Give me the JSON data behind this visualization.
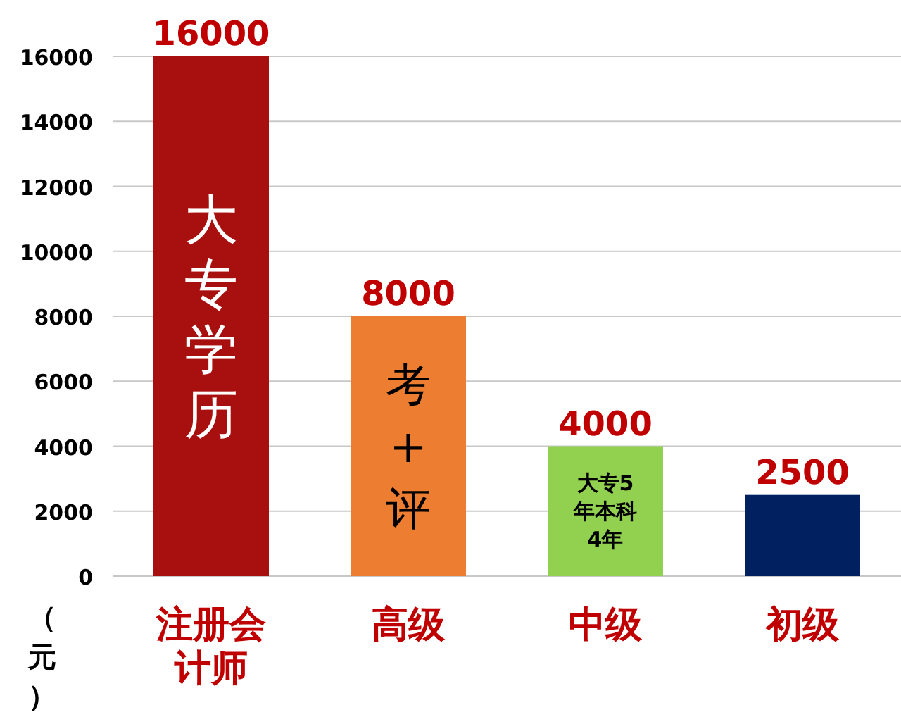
{
  "chart_data": {
    "type": "bar",
    "categories": [
      "注册会计师",
      "高级",
      "中级",
      "初级"
    ],
    "values": [
      16000,
      8000,
      4000,
      2500
    ],
    "colors": [
      "#a8100f",
      "#ed7d31",
      "#92d050",
      "#002060"
    ],
    "ylabel": "（元）",
    "ylim": [
      0,
      16000
    ],
    "yticks": [
      0,
      2000,
      4000,
      6000,
      8000,
      10000,
      12000,
      14000,
      16000
    ],
    "grid": "y",
    "data_labels": true,
    "annotations": [
      "大专学历",
      "考+评",
      "大专5年本科4年"
    ]
  }
}
